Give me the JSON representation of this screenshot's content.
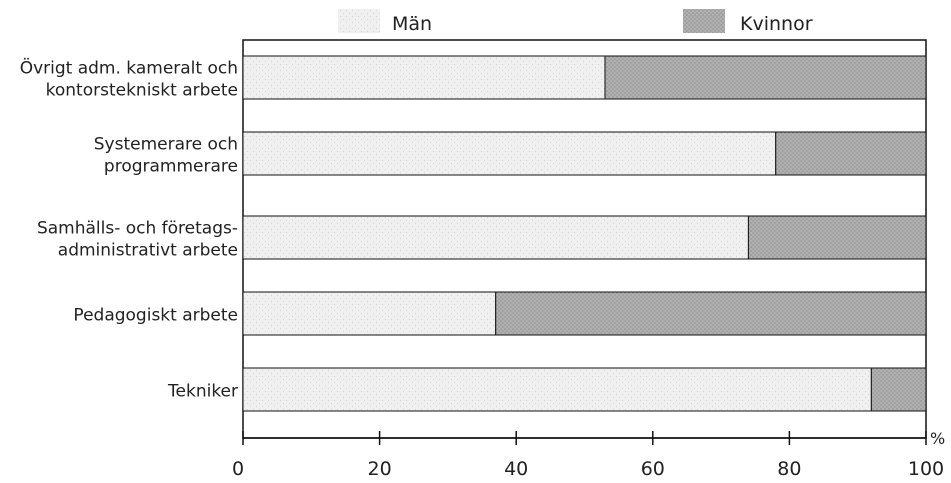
{
  "chart_data": {
    "type": "bar",
    "orientation": "horizontal",
    "stacked": true,
    "categories": [
      [
        "Övrigt adm. kameralt och",
        "kontorstekniskt arbete"
      ],
      [
        "Systemerare och",
        "programmerare"
      ],
      [
        "Samhälls- och  företags-",
        "administrativt arbete"
      ],
      [
        "Pedagogiskt arbete"
      ],
      [
        "Tekniker"
      ]
    ],
    "series": [
      {
        "name": "Män",
        "values": [
          53,
          78,
          74,
          37,
          92
        ],
        "color": "#eeeeee"
      },
      {
        "name": "Kvinnor",
        "values": [
          47,
          22,
          26,
          63,
          8
        ],
        "color": "#a8a8a8"
      }
    ],
    "xticks": [
      "0",
      "20",
      "40",
      "60",
      "80",
      "100"
    ],
    "xtick_values": [
      0,
      20,
      40,
      60,
      80,
      100
    ],
    "xunit": "%",
    "xlim": [
      0,
      100
    ],
    "legend_position": "top",
    "grid": false
  }
}
